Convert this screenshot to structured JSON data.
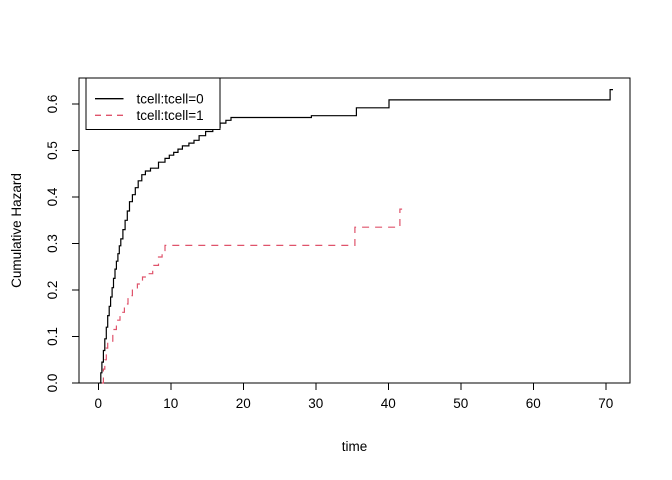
{
  "figure": {
    "background": "#ffffff",
    "frame_color": "#000000",
    "text_color": "#000000"
  },
  "chart_data": {
    "type": "line",
    "subtype": "step-cumulative-hazard",
    "title": "",
    "xlabel": "time",
    "ylabel": "Cumulative Hazard",
    "xlim": [
      -2.66,
      73.34
    ],
    "ylim": [
      0,
      0.656
    ],
    "grid": false,
    "x_ticks": [
      {
        "value": 0,
        "label": "0"
      },
      {
        "value": 10,
        "label": "10"
      },
      {
        "value": 20,
        "label": "20"
      },
      {
        "value": 30,
        "label": "30"
      },
      {
        "value": 40,
        "label": "40"
      },
      {
        "value": 50,
        "label": "50"
      },
      {
        "value": 60,
        "label": "60"
      },
      {
        "value": 70,
        "label": "70"
      }
    ],
    "y_ticks": [
      {
        "value": 0.0,
        "label": "0.0"
      },
      {
        "value": 0.1,
        "label": "0.1"
      },
      {
        "value": 0.2,
        "label": "0.2"
      },
      {
        "value": 0.3,
        "label": "0.3"
      },
      {
        "value": 0.4,
        "label": "0.4"
      },
      {
        "value": 0.5,
        "label": "0.5"
      },
      {
        "value": 0.6,
        "label": "0.6"
      }
    ],
    "legend": {
      "position": "topleft",
      "entries": [
        {
          "label": "tcell:tcell=0",
          "color": "#000000",
          "linestyle": "solid"
        },
        {
          "label": "tcell:tcell=1",
          "color": "#DF536B",
          "linestyle": "dashed"
        }
      ]
    },
    "series": [
      {
        "name": "tcell:tcell=0",
        "color": "#000000",
        "linestyle": "solid",
        "end_t": 71.0,
        "points": [
          [
            0.15,
            0.0
          ],
          [
            0.35,
            0.022
          ],
          [
            0.5,
            0.045
          ],
          [
            0.7,
            0.07
          ],
          [
            0.9,
            0.095
          ],
          [
            1.1,
            0.12
          ],
          [
            1.3,
            0.145
          ],
          [
            1.5,
            0.165
          ],
          [
            1.7,
            0.185
          ],
          [
            1.9,
            0.205
          ],
          [
            2.1,
            0.225
          ],
          [
            2.3,
            0.245
          ],
          [
            2.5,
            0.262
          ],
          [
            2.7,
            0.278
          ],
          [
            2.9,
            0.295
          ],
          [
            3.1,
            0.31
          ],
          [
            3.4,
            0.33
          ],
          [
            3.7,
            0.35
          ],
          [
            4.0,
            0.37
          ],
          [
            4.3,
            0.39
          ],
          [
            4.7,
            0.405
          ],
          [
            5.1,
            0.42
          ],
          [
            5.5,
            0.435
          ],
          [
            6.0,
            0.448
          ],
          [
            6.5,
            0.456
          ],
          [
            7.2,
            0.462
          ],
          [
            8.3,
            0.475
          ],
          [
            9.2,
            0.483
          ],
          [
            9.8,
            0.49
          ],
          [
            10.4,
            0.496
          ],
          [
            11.0,
            0.503
          ],
          [
            11.6,
            0.51
          ],
          [
            12.5,
            0.516
          ],
          [
            13.2,
            0.522
          ],
          [
            13.9,
            0.532
          ],
          [
            14.8,
            0.541
          ],
          [
            15.8,
            0.55
          ],
          [
            16.8,
            0.559
          ],
          [
            17.6,
            0.565
          ],
          [
            18.3,
            0.571
          ],
          [
            29.4,
            0.575
          ],
          [
            35.6,
            0.592
          ],
          [
            40.1,
            0.609
          ],
          [
            70.6,
            0.631
          ]
        ]
      },
      {
        "name": "tcell:tcell=1",
        "color": "#DF536B",
        "linestyle": "dashed",
        "end_t": 41.9,
        "points": [
          [
            0.5,
            0.0
          ],
          [
            0.7,
            0.03
          ],
          [
            0.9,
            0.05
          ],
          [
            1.1,
            0.075
          ],
          [
            1.3,
            0.09
          ],
          [
            2.0,
            0.115
          ],
          [
            2.5,
            0.135
          ],
          [
            3.0,
            0.152
          ],
          [
            3.6,
            0.17
          ],
          [
            4.1,
            0.188
          ],
          [
            4.7,
            0.203
          ],
          [
            5.4,
            0.213
          ],
          [
            6.1,
            0.228
          ],
          [
            6.9,
            0.235
          ],
          [
            7.5,
            0.253
          ],
          [
            8.3,
            0.271
          ],
          [
            8.8,
            0.285
          ],
          [
            9.2,
            0.296
          ],
          [
            35.4,
            0.335
          ],
          [
            41.6,
            0.374
          ]
        ]
      }
    ]
  }
}
